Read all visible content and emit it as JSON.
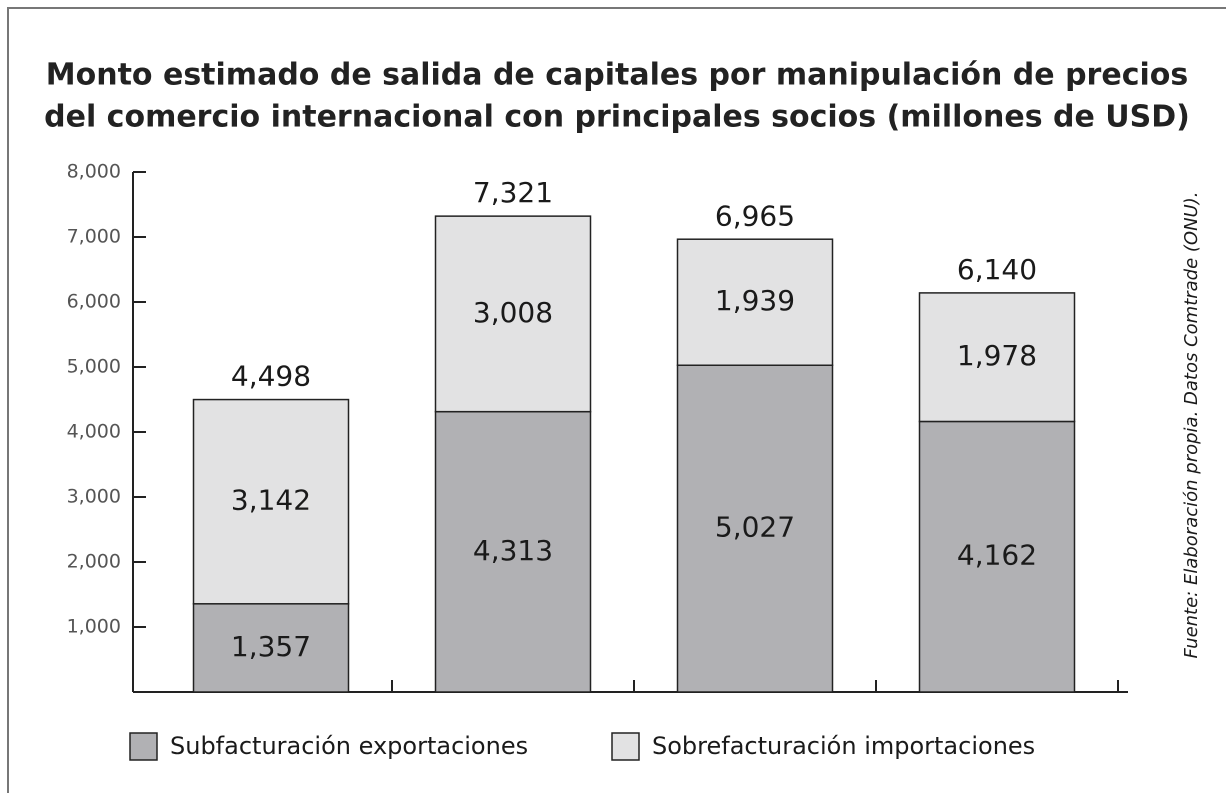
{
  "chart_data": {
    "type": "stacked_bar",
    "title": [
      "Monto estimado de salida de capitales por manipulación de precios",
      "del comercio internacional con principales socios (millones de USD)"
    ],
    "source": "Fuente: Elaboración propia.  Datos Comtrade (ONU).",
    "categories": [
      null,
      null,
      null,
      null
    ],
    "series": [
      {
        "name": "Subfacturación exportaciones",
        "color": "#b1b1b4",
        "values": [
          1357,
          4313,
          5027,
          4162
        ],
        "value_labels": [
          "1,357",
          "4,313",
          "5,027",
          "4,162"
        ]
      },
      {
        "name": "Sobrefacturación importaciones",
        "color": "#e2e2e3",
        "values": [
          3142,
          3008,
          1939,
          1978
        ],
        "value_labels": [
          "3,142",
          "3,008",
          "1,939",
          "1,978"
        ]
      }
    ],
    "totals": [
      4498,
      7321,
      6965,
      6140
    ],
    "total_labels": [
      "4,498",
      "7,321",
      "6,965",
      "6,140"
    ],
    "ylim": [
      0,
      8000
    ],
    "yticks": [
      {
        "value": 1000,
        "label": "1,000"
      },
      {
        "value": 2000,
        "label": "2,000"
      },
      {
        "value": 3000,
        "label": "3,000"
      },
      {
        "value": 4000,
        "label": "4,000"
      },
      {
        "value": 5000,
        "label": "5,000"
      },
      {
        "value": 6000,
        "label": "6,000"
      },
      {
        "value": 7000,
        "label": "7,000"
      },
      {
        "value": 8000,
        "label": "8,000"
      }
    ],
    "grid": false,
    "legend": "bottom"
  }
}
